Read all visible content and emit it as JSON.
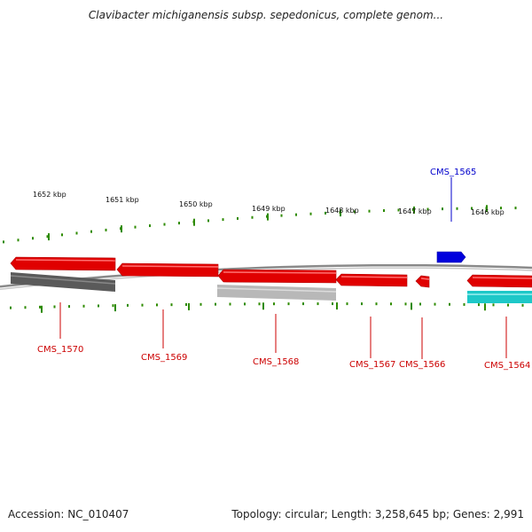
{
  "title": "Clavibacter michiganensis subsp. sepedonicus, complete genom...",
  "footer": {
    "accession": "Accession: NC_010407",
    "summary": "Topology: circular; Length: 3,258,645 bp; Genes: 2,991"
  },
  "ticks": [
    {
      "label": "1652 kbp"
    },
    {
      "label": "1651 kbp"
    },
    {
      "label": "1650 kbp"
    },
    {
      "label": "1649 kbp"
    },
    {
      "label": "1648 kbp"
    },
    {
      "label": "1647 kbp"
    },
    {
      "label": "1646 kbp"
    }
  ],
  "genes": [
    {
      "name": "CMS_1570",
      "strand": "reverse"
    },
    {
      "name": "CMS_1569",
      "strand": "reverse"
    },
    {
      "name": "CMS_1568",
      "strand": "reverse"
    },
    {
      "name": "CMS_1567",
      "strand": "reverse"
    },
    {
      "name": "CMS_1566",
      "strand": "reverse"
    },
    {
      "name": "CMS_1564",
      "strand": "reverse"
    },
    {
      "name": "CMS_1565",
      "strand": "forward"
    }
  ],
  "colors": {
    "reverse_gene": "#e00000",
    "reverse_label": "#cc0000",
    "forward_gene": "#0000dd",
    "forward_label": "#0000cc",
    "tick": "#2e8b00",
    "backbone": "#8a8a8a",
    "feature_dark": "#5a5a5a",
    "feature_light": "#b8b8b8",
    "feature_cyan": "#1ec8c8"
  }
}
